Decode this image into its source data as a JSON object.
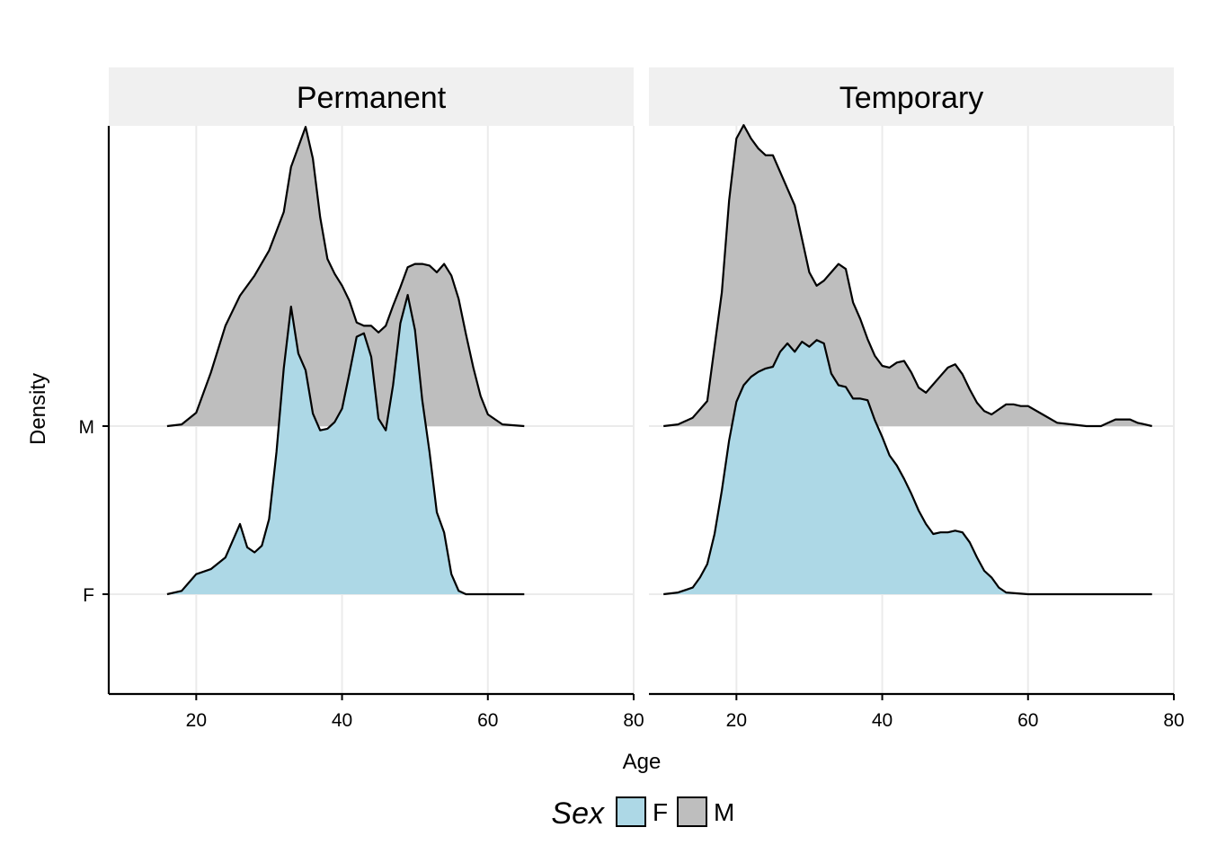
{
  "chart_data": {
    "type": "area",
    "subtype": "ridgeline-density",
    "xlabel": "Age",
    "ylabel": "Density",
    "xlim": [
      8,
      80
    ],
    "x_ticks": [
      "20",
      "40",
      "60",
      "80"
    ],
    "y_categories": [
      "F",
      "M"
    ],
    "grid": true,
    "legend": {
      "title": "Sex",
      "position": "bottom",
      "entries": [
        {
          "label": "F",
          "color": "#add8e6"
        },
        {
          "label": "M",
          "color": "#bebebe"
        }
      ]
    },
    "panels": [
      {
        "title": "Permanent",
        "series": [
          {
            "name": "F",
            "color": "#add8e6",
            "points": [
              [
                16,
                0
              ],
              [
                18,
                0.02
              ],
              [
                19,
                0.07
              ],
              [
                20,
                0.12
              ],
              [
                22,
                0.15
              ],
              [
                24,
                0.22
              ],
              [
                26,
                0.42
              ],
              [
                27,
                0.28
              ],
              [
                28,
                0.25
              ],
              [
                29,
                0.29
              ],
              [
                30,
                0.45
              ],
              [
                31,
                0.85
              ],
              [
                32,
                1.35
              ],
              [
                33,
                1.72
              ],
              [
                34,
                1.44
              ],
              [
                35,
                1.34
              ],
              [
                36,
                1.08
              ],
              [
                37,
                0.98
              ],
              [
                38,
                0.99
              ],
              [
                39,
                1.03
              ],
              [
                40,
                1.11
              ],
              [
                41,
                1.32
              ],
              [
                42,
                1.54
              ],
              [
                43,
                1.56
              ],
              [
                44,
                1.42
              ],
              [
                45,
                1.05
              ],
              [
                46,
                0.98
              ],
              [
                47,
                1.25
              ],
              [
                48,
                1.62
              ],
              [
                49,
                1.79
              ],
              [
                50,
                1.58
              ],
              [
                51,
                1.16
              ],
              [
                52,
                0.85
              ],
              [
                53,
                0.49
              ],
              [
                54,
                0.37
              ],
              [
                55,
                0.12
              ],
              [
                56,
                0.02
              ],
              [
                57,
                0
              ],
              [
                65,
                0
              ]
            ]
          },
          {
            "name": "M",
            "color": "#bebebe",
            "points": [
              [
                16,
                0
              ],
              [
                18,
                0.01
              ],
              [
                20,
                0.08
              ],
              [
                22,
                0.32
              ],
              [
                24,
                0.6
              ],
              [
                26,
                0.78
              ],
              [
                28,
                0.9
              ],
              [
                30,
                1.05
              ],
              [
                32,
                1.28
              ],
              [
                33,
                1.55
              ],
              [
                35,
                1.79
              ],
              [
                36,
                1.6
              ],
              [
                37,
                1.25
              ],
              [
                38,
                1.0
              ],
              [
                39,
                0.91
              ],
              [
                40,
                0.84
              ],
              [
                41,
                0.75
              ],
              [
                42,
                0.62
              ],
              [
                43,
                0.6
              ],
              [
                44,
                0.6
              ],
              [
                45,
                0.56
              ],
              [
                46,
                0.6
              ],
              [
                47,
                0.72
              ],
              [
                48,
                0.83
              ],
              [
                49,
                0.95
              ],
              [
                50,
                0.97
              ],
              [
                51,
                0.97
              ],
              [
                52,
                0.96
              ],
              [
                53,
                0.92
              ],
              [
                54,
                0.97
              ],
              [
                55,
                0.9
              ],
              [
                56,
                0.76
              ],
              [
                57,
                0.55
              ],
              [
                58,
                0.35
              ],
              [
                59,
                0.18
              ],
              [
                60,
                0.07
              ],
              [
                62,
                0.01
              ],
              [
                65,
                0
              ]
            ]
          }
        ]
      },
      {
        "title": "Temporary",
        "series": [
          {
            "name": "F",
            "color": "#add8e6",
            "points": [
              [
                10,
                0
              ],
              [
                12,
                0.01
              ],
              [
                14,
                0.04
              ],
              [
                15,
                0.1
              ],
              [
                16,
                0.18
              ],
              [
                17,
                0.36
              ],
              [
                18,
                0.62
              ],
              [
                19,
                0.92
              ],
              [
                20,
                1.15
              ],
              [
                21,
                1.25
              ],
              [
                22,
                1.3
              ],
              [
                23,
                1.33
              ],
              [
                24,
                1.35
              ],
              [
                25,
                1.36
              ],
              [
                26,
                1.45
              ],
              [
                27,
                1.5
              ],
              [
                28,
                1.45
              ],
              [
                29,
                1.51
              ],
              [
                30,
                1.48
              ],
              [
                31,
                1.52
              ],
              [
                32,
                1.5
              ],
              [
                33,
                1.32
              ],
              [
                34,
                1.25
              ],
              [
                35,
                1.24
              ],
              [
                36,
                1.17
              ],
              [
                37,
                1.17
              ],
              [
                38,
                1.16
              ],
              [
                39,
                1.04
              ],
              [
                40,
                0.94
              ],
              [
                41,
                0.83
              ],
              [
                42,
                0.77
              ],
              [
                43,
                0.69
              ],
              [
                44,
                0.6
              ],
              [
                45,
                0.5
              ],
              [
                46,
                0.42
              ],
              [
                47,
                0.36
              ],
              [
                48,
                0.37
              ],
              [
                49,
                0.37
              ],
              [
                50,
                0.38
              ],
              [
                51,
                0.37
              ],
              [
                52,
                0.31
              ],
              [
                53,
                0.22
              ],
              [
                54,
                0.14
              ],
              [
                55,
                0.1
              ],
              [
                56,
                0.04
              ],
              [
                57,
                0.01
              ],
              [
                60,
                0
              ],
              [
                77,
                0
              ]
            ]
          },
          {
            "name": "M",
            "color": "#bebebe",
            "points": [
              [
                10,
                0
              ],
              [
                12,
                0.01
              ],
              [
                14,
                0.05
              ],
              [
                16,
                0.15
              ],
              [
                18,
                0.8
              ],
              [
                19,
                1.35
              ],
              [
                20,
                1.72
              ],
              [
                21,
                1.8
              ],
              [
                22,
                1.72
              ],
              [
                23,
                1.66
              ],
              [
                24,
                1.62
              ],
              [
                25,
                1.62
              ],
              [
                26,
                1.52
              ],
              [
                27,
                1.42
              ],
              [
                28,
                1.32
              ],
              [
                29,
                1.12
              ],
              [
                30,
                0.92
              ],
              [
                31,
                0.84
              ],
              [
                32,
                0.87
              ],
              [
                33,
                0.92
              ],
              [
                34,
                0.97
              ],
              [
                35,
                0.94
              ],
              [
                36,
                0.74
              ],
              [
                37,
                0.64
              ],
              [
                38,
                0.52
              ],
              [
                39,
                0.42
              ],
              [
                40,
                0.36
              ],
              [
                41,
                0.35
              ],
              [
                42,
                0.38
              ],
              [
                43,
                0.39
              ],
              [
                44,
                0.32
              ],
              [
                45,
                0.23
              ],
              [
                46,
                0.2
              ],
              [
                47,
                0.25
              ],
              [
                48,
                0.3
              ],
              [
                49,
                0.35
              ],
              [
                50,
                0.37
              ],
              [
                51,
                0.31
              ],
              [
                52,
                0.22
              ],
              [
                53,
                0.14
              ],
              [
                54,
                0.09
              ],
              [
                55,
                0.07
              ],
              [
                56,
                0.1
              ],
              [
                57,
                0.13
              ],
              [
                58,
                0.13
              ],
              [
                59,
                0.12
              ],
              [
                60,
                0.12
              ],
              [
                62,
                0.07
              ],
              [
                64,
                0.02
              ],
              [
                66,
                0.01
              ],
              [
                68,
                0
              ],
              [
                70,
                0
              ],
              [
                71,
                0.02
              ],
              [
                72,
                0.04
              ],
              [
                73,
                0.04
              ],
              [
                74,
                0.04
              ],
              [
                75,
                0.02
              ],
              [
                76,
                0.01
              ],
              [
                77,
                0
              ]
            ]
          }
        ]
      }
    ]
  }
}
